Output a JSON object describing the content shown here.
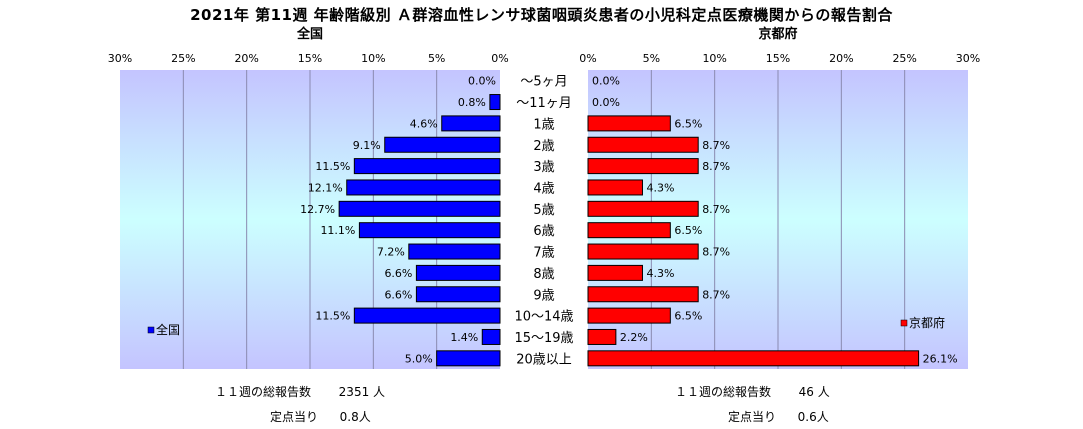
{
  "title": "2021年 第11週 年齢階級別 Ａ群溶血性レンサ球菌咽頭炎患者の小児科定点医療機関からの報告割合",
  "chart_data": {
    "type": "bar",
    "orientation": "horizontal",
    "layout": "back-to-back",
    "categories": [
      "〜5ヶ月",
      "〜11ヶ月",
      "1歳",
      "2歳",
      "3歳",
      "4歳",
      "5歳",
      "6歳",
      "7歳",
      "8歳",
      "9歳",
      "10〜14歳",
      "15〜19歳",
      "20歳以上"
    ],
    "series": [
      {
        "name": "全国",
        "panel_title": "全国",
        "side": "left",
        "color": "#0000ff",
        "values": [
          0.0,
          0.8,
          4.6,
          9.1,
          11.5,
          12.1,
          12.7,
          11.1,
          7.2,
          6.6,
          6.6,
          11.5,
          1.4,
          5.0
        ],
        "value_labels": [
          "0.0%",
          "0.8%",
          "4.6%",
          "9.1%",
          "11.5%",
          "12.1%",
          "12.7%",
          "11.1%",
          "7.2%",
          "6.6%",
          "6.6%",
          "11.5%",
          "1.4%",
          "5.0%"
        ]
      },
      {
        "name": "京都府",
        "panel_title": "京都府",
        "side": "right",
        "color": "#ff0000",
        "values": [
          0.0,
          0.0,
          6.5,
          8.7,
          8.7,
          4.3,
          8.7,
          6.5,
          8.7,
          4.3,
          8.7,
          6.5,
          2.2,
          26.1
        ],
        "value_labels": [
          "0.0%",
          "0.0%",
          "6.5%",
          "8.7%",
          "8.7%",
          "4.3%",
          "8.7%",
          "6.5%",
          "8.7%",
          "4.3%",
          "8.7%",
          "6.5%",
          "2.2%",
          "26.1%"
        ]
      }
    ],
    "xlim": [
      0,
      30
    ],
    "ticks": [
      0,
      5,
      10,
      15,
      20,
      25,
      30
    ],
    "tick_labels": [
      "0%",
      "5%",
      "10%",
      "15%",
      "20%",
      "25%",
      "30%"
    ],
    "grid": true,
    "legend": [
      "bottom-left",
      "bottom-right"
    ],
    "colors": {
      "plot_gradient_top": "#c4c4ff",
      "plot_gradient_mid": "#ccffff",
      "plot_gradient_bottom": "#c4c4ff",
      "gridline": "#8a8ab0",
      "bar_outline": "#000000"
    }
  },
  "summary": {
    "national": {
      "total_label": "１１週の総報告数",
      "total_value": "2351 人",
      "per_site_label": "定点当り",
      "per_site_value": "0.8人"
    },
    "kyoto": {
      "total_label": "１１週の総報告数",
      "total_value": "46 人",
      "per_site_label": "定点当り",
      "per_site_value": "0.6人"
    }
  }
}
